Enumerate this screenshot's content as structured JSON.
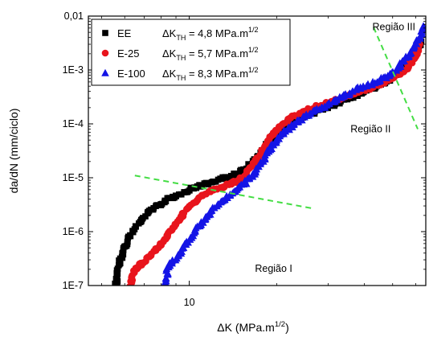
{
  "chart_data": {
    "type": "scatter",
    "x_scale": "log",
    "y_scale": "log",
    "xlim": [
      4.5,
      65
    ],
    "ylim": [
      1e-07,
      0.01
    ],
    "xlabel": {
      "base": "ΔK (MPa.m",
      "sup": "1/2",
      "tail": ")"
    },
    "ylabel": "da/dN (mm/ciclo)",
    "x_ticks": [
      {
        "value": 10,
        "label": "10"
      }
    ],
    "y_ticks": [
      {
        "value": 1e-07,
        "label": "1E-7"
      },
      {
        "value": 1e-06,
        "label": "1E-6"
      },
      {
        "value": 1e-05,
        "label": "1E-5"
      },
      {
        "value": 0.0001,
        "label": "1E-4"
      },
      {
        "value": 0.001,
        "label": "1E-3"
      },
      {
        "value": 0.01,
        "label": "0,01"
      }
    ],
    "grid": false,
    "legend_position": "top-left",
    "series": [
      {
        "name": "EE",
        "annotation": {
          "prefix": "ΔK",
          "sub": "TH",
          "text": " = 4,8 MPa.m",
          "sup": "1/2"
        },
        "color": "#000000",
        "marker": "square",
        "points": [
          [
            5.6,
            1e-07
          ],
          [
            5.65,
            1.4e-07
          ],
          [
            5.7,
            2e-07
          ],
          [
            5.8,
            3e-07
          ],
          [
            5.95,
            4.5e-07
          ],
          [
            6.1,
            6.5e-07
          ],
          [
            6.3,
            9e-07
          ],
          [
            6.6,
            1.3e-06
          ],
          [
            7.0,
            1.9e-06
          ],
          [
            7.5,
            2.6e-06
          ],
          [
            8.0,
            3.3e-06
          ],
          [
            8.6,
            4.1e-06
          ],
          [
            9.3,
            5e-06
          ],
          [
            10.0,
            6e-06
          ],
          [
            10.8,
            7e-06
          ],
          [
            11.7,
            8e-06
          ],
          [
            12.7,
            9.2e-06
          ],
          [
            13.8,
            1.05e-05
          ],
          [
            14.8,
            1.25e-05
          ],
          [
            15.8,
            1.55e-05
          ],
          [
            16.8,
            2.1e-05
          ],
          [
            17.8,
            3e-05
          ],
          [
            18.8,
            4.5e-05
          ],
          [
            19.8,
            6.5e-05
          ],
          [
            21.0,
            9e-05
          ],
          [
            23.0,
            0.00012
          ],
          [
            26.0,
            0.00015
          ],
          [
            29.0,
            0.00019
          ],
          [
            32.0,
            0.00023
          ],
          [
            35.0,
            0.00029
          ],
          [
            38.0,
            0.00035
          ],
          [
            41.0,
            0.00043
          ],
          [
            44.0,
            0.0005
          ],
          [
            47.0,
            0.0006
          ],
          [
            50.0,
            0.00075
          ],
          [
            53.0,
            0.00095
          ],
          [
            56.0,
            0.0013
          ],
          [
            59.0,
            0.0019
          ],
          [
            61.0,
            0.0026
          ],
          [
            62.5,
            0.0034
          ]
        ]
      },
      {
        "name": "E-25",
        "annotation": {
          "prefix": "ΔK",
          "sub": "TH",
          "text": " = 5,7 MPa.m",
          "sup": "1/2"
        },
        "color": "#e8141c",
        "marker": "circle",
        "points": [
          [
            6.3,
            1e-07
          ],
          [
            6.35,
            1.3e-07
          ],
          [
            6.45,
            1.8e-07
          ],
          [
            6.7,
            2.3e-07
          ],
          [
            7.0,
            2.8e-07
          ],
          [
            7.3,
            3.4e-07
          ],
          [
            7.6,
            4.3e-07
          ],
          [
            7.9,
            5.5e-07
          ],
          [
            8.2,
            7e-07
          ],
          [
            8.5,
            9e-07
          ],
          [
            8.8,
            1.2e-06
          ],
          [
            9.2,
            1.6e-06
          ],
          [
            9.6,
            2.2e-06
          ],
          [
            10.0,
            2.9e-06
          ],
          [
            10.5,
            3.7e-06
          ],
          [
            11.0,
            4.5e-06
          ],
          [
            11.6,
            5.3e-06
          ],
          [
            12.2,
            6e-06
          ],
          [
            13.0,
            6.8e-06
          ],
          [
            13.8,
            7.6e-06
          ],
          [
            14.6,
            8.8e-06
          ],
          [
            15.4,
            1.1e-05
          ],
          [
            16.2,
            1.5e-05
          ],
          [
            17.0,
            2.1e-05
          ],
          [
            17.8,
            3.1e-05
          ],
          [
            18.6,
            4.6e-05
          ],
          [
            19.6,
            6.8e-05
          ],
          [
            21.0,
            0.0001
          ],
          [
            23.0,
            0.00014
          ],
          [
            26.0,
            0.00019
          ],
          [
            29.0,
            0.00023
          ],
          [
            32.0,
            0.00028
          ],
          [
            35.0,
            0.00033
          ],
          [
            38.0,
            0.00039
          ],
          [
            41.0,
            0.00045
          ],
          [
            44.0,
            0.00052
          ],
          [
            47.0,
            0.0006
          ],
          [
            50.0,
            0.00072
          ],
          [
            53.0,
            0.00088
          ],
          [
            56.0,
            0.0011
          ],
          [
            58.5,
            0.0015
          ],
          [
            60.5,
            0.0022
          ],
          [
            62.0,
            0.003
          ]
        ]
      },
      {
        "name": "E-100",
        "annotation": {
          "prefix": "ΔK",
          "sub": "TH",
          "text": " = 8,3 MPa.m",
          "sup": "1/2"
        },
        "color": "#1414e6",
        "marker": "triangle",
        "points": [
          [
            8.3,
            1e-07
          ],
          [
            8.35,
            1.5e-07
          ],
          [
            8.45,
            2.1e-07
          ],
          [
            8.7,
            2.7e-07
          ],
          [
            9.0,
            3.2e-07
          ],
          [
            9.3,
            4e-07
          ],
          [
            9.6,
            5.2e-07
          ],
          [
            10.0,
            7e-07
          ],
          [
            10.4,
            9.5e-07
          ],
          [
            10.9,
            1.3e-06
          ],
          [
            11.4,
            1.8e-06
          ],
          [
            12.0,
            2.5e-06
          ],
          [
            12.7,
            3.3e-06
          ],
          [
            13.4,
            4.2e-06
          ],
          [
            14.1,
            5.2e-06
          ],
          [
            14.9,
            6.5e-06
          ],
          [
            15.7,
            8.5e-06
          ],
          [
            16.5,
            1.15e-05
          ],
          [
            17.3,
            1.6e-05
          ],
          [
            18.1,
            2.3e-05
          ],
          [
            19.0,
            3.4e-05
          ],
          [
            20.0,
            5e-05
          ],
          [
            21.5,
            7.5e-05
          ],
          [
            23.5,
            0.00011
          ],
          [
            26.0,
            0.00015
          ],
          [
            29.0,
            0.00021
          ],
          [
            32.0,
            0.00028
          ],
          [
            35.0,
            0.00036
          ],
          [
            38.0,
            0.00045
          ],
          [
            41.0,
            0.00052
          ],
          [
            44.0,
            0.0006
          ],
          [
            47.0,
            0.00072
          ],
          [
            50.0,
            0.0009
          ],
          [
            53.0,
            0.0012
          ],
          [
            56.0,
            0.0017
          ],
          [
            59.0,
            0.0025
          ],
          [
            61.5,
            0.0036
          ],
          [
            63.0,
            0.005
          ],
          [
            63.8,
            0.0065
          ]
        ]
      }
    ],
    "annotations": [
      {
        "text": "Região III",
        "x": 50.5,
        "y": 0.0055
      },
      {
        "text": "Região II",
        "x": 42,
        "y": 7e-05
      },
      {
        "text": "Região I",
        "x": 19.5,
        "y": 1.8e-07
      }
    ],
    "guide_lines": [
      {
        "color": "#44dd44",
        "style": "dashed",
        "from": [
          6.5,
          1.1e-05
        ],
        "to": [
          26.5,
          2.7e-06
        ]
      },
      {
        "color": "#44dd44",
        "style": "dashed",
        "from": [
          43,
          0.0062
        ],
        "to": [
          61,
          8e-05
        ]
      }
    ]
  }
}
